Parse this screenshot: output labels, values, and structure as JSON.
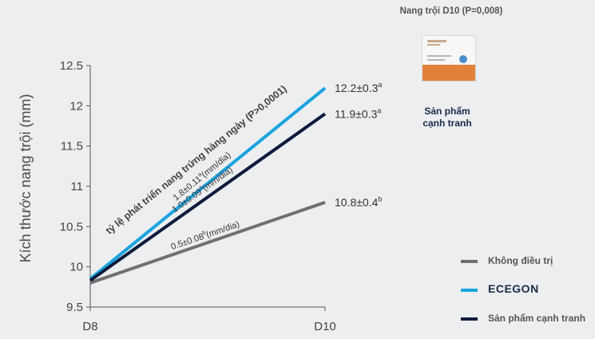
{
  "chart_data": {
    "type": "line",
    "ylabel": "Kích thước nang trội (mm)",
    "ylim": [
      9.5,
      12.5
    ],
    "yticks": [
      "9.5",
      "10",
      "10.5",
      "11",
      "11.5",
      "12",
      "12.5"
    ],
    "categories": [
      "D8",
      "D10"
    ],
    "series": [
      {
        "name": "Không điều trị",
        "color": "#707070",
        "values": [
          9.8,
          10.8
        ],
        "end_label": "10.8±0.4",
        "end_sup": "b",
        "rate_label": "0.5±0.08",
        "rate_sup": "b",
        "rate_unit": "(mm/dia)"
      },
      {
        "name": "ECEGON",
        "color": "#1aa3df",
        "values": [
          9.85,
          12.22
        ],
        "end_label": "12.2±0.3",
        "end_sup": "a",
        "rate_label": "1.8±0.11",
        "rate_sup": "a",
        "rate_unit": "(mm/dia)"
      },
      {
        "name": "Sản phẩm cạnh tranh",
        "color": "#0d1b3d",
        "values": [
          9.83,
          11.9
        ],
        "end_label": "11.9±0.3",
        "end_sup": "a",
        "rate_label": "1.0±0.09",
        "rate_sup": "a",
        "rate_unit": "(mm/dia)"
      }
    ],
    "annotation": "tỷ lệ phát triển nang trứng hàng ngày (P>0,0001)"
  },
  "side_panel": {
    "title": "Nang trội D10 (P=0,008)",
    "product_name_line1": "Sản phẩm",
    "product_name_line2": "cạnh tranh",
    "product_image_icon": "product-box-image"
  }
}
